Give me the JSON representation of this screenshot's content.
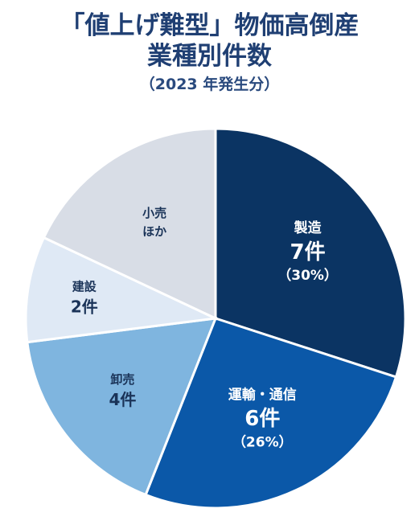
{
  "chart_data": {
    "type": "pie",
    "title": "「値上げ難型」物価高倒産",
    "subtitle": "業種別件数",
    "period": "（2023 年発生分）",
    "slices": [
      {
        "label": "製造",
        "count": "7件",
        "percent": "（30%）",
        "value": 30,
        "color": "#0b3463",
        "text_color": "#ffffff"
      },
      {
        "label": "運輸・通信",
        "count": "6件",
        "percent": "（26%）",
        "value": 26,
        "color": "#0b58a8",
        "text_color": "#ffffff"
      },
      {
        "label": "卸売",
        "count": "4件",
        "percent": "",
        "value": 17,
        "color": "#7fb5df",
        "text_color": "#1a3358"
      },
      {
        "label": "建設",
        "count": "2件",
        "percent": "",
        "value": 9,
        "color": "#dfe9f5",
        "text_color": "#1a3358"
      },
      {
        "label": "小売\nほか",
        "count": "",
        "percent": "",
        "value": 18,
        "color": "#d8dde6",
        "text_color": "#1a3358"
      }
    ]
  }
}
